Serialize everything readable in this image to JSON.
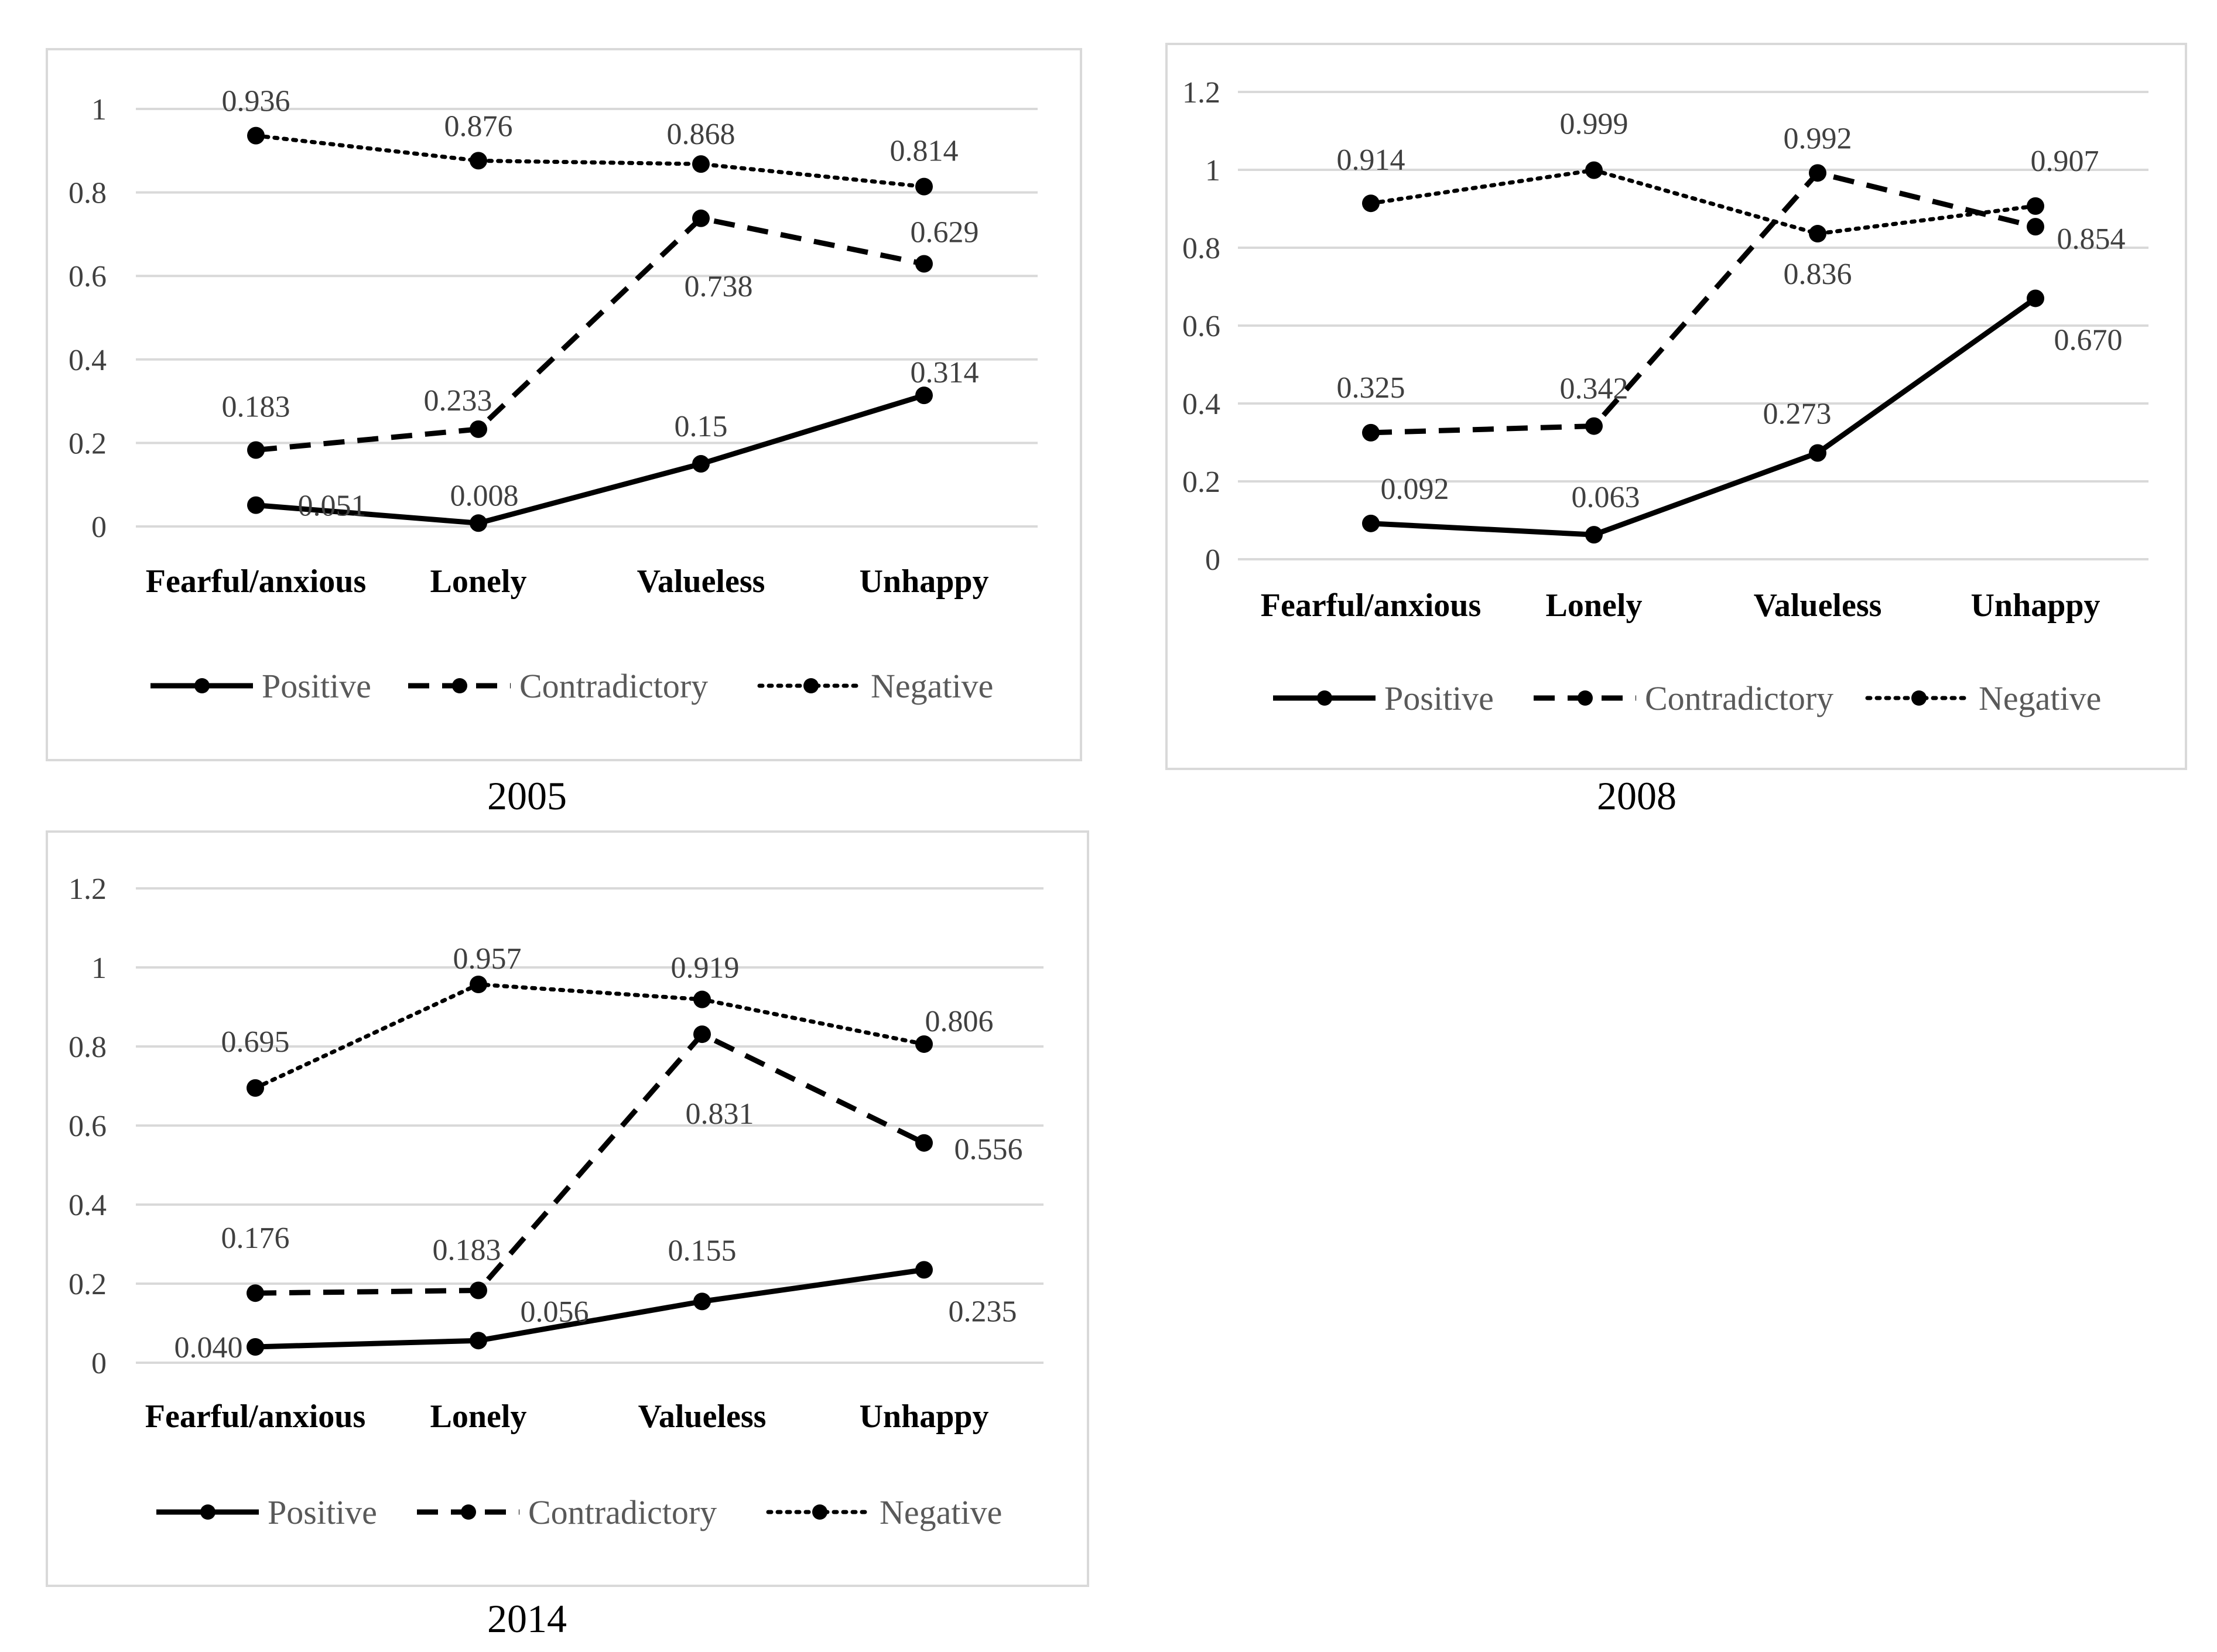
{
  "chart_data": [
    {
      "type": "line",
      "caption": "2005",
      "categories": [
        "Fearful/anxious",
        "Lonely",
        "Valueless",
        "Unhappy"
      ],
      "ylim": [
        0,
        1
      ],
      "yticks": [
        "0",
        "0.2",
        "0.4",
        "0.6",
        "0.8",
        "1"
      ],
      "grid": true,
      "legend_position": "bottom",
      "series": [
        {
          "name": "Positive",
          "style": "solid",
          "values": [
            0.051,
            0.008,
            0.15,
            0.314
          ],
          "labels": [
            "0.051",
            "0.008",
            "0.15",
            "0.314"
          ]
        },
        {
          "name": "Contradictory",
          "style": "dashed",
          "values": [
            0.183,
            0.233,
            0.738,
            0.629
          ],
          "labels": [
            "0.183",
            "0.233",
            "0.738",
            "0.629"
          ]
        },
        {
          "name": "Negative",
          "style": "dotted",
          "values": [
            0.936,
            0.876,
            0.868,
            0.814
          ],
          "labels": [
            "0.936",
            "0.876",
            "0.868",
            "0.814"
          ]
        }
      ]
    },
    {
      "type": "line",
      "caption": "2008",
      "categories": [
        "Fearful/anxious",
        "Lonely",
        "Valueless",
        "Unhappy"
      ],
      "ylim": [
        0,
        1.2
      ],
      "yticks": [
        "0",
        "0.2",
        "0.4",
        "0.6",
        "0.8",
        "1",
        "1.2"
      ],
      "grid": true,
      "legend_position": "bottom",
      "series": [
        {
          "name": "Positive",
          "style": "solid",
          "values": [
            0.092,
            0.063,
            0.273,
            0.67
          ],
          "labels": [
            "0.092",
            "0.063",
            "0.273",
            "0.670"
          ]
        },
        {
          "name": "Contradictory",
          "style": "dashed",
          "values": [
            0.325,
            0.342,
            0.992,
            0.854
          ],
          "labels": [
            "0.325",
            "0.342",
            "0.992",
            "0.854"
          ]
        },
        {
          "name": "Negative",
          "style": "dotted",
          "values": [
            0.914,
            0.999,
            0.836,
            0.907
          ],
          "labels": [
            "0.914",
            "0.999",
            "0.836",
            "0.907"
          ]
        }
      ]
    },
    {
      "type": "line",
      "caption": "2014",
      "categories": [
        "Fearful/anxious",
        "Lonely",
        "Valueless",
        "Unhappy"
      ],
      "ylim": [
        0,
        1.2
      ],
      "yticks": [
        "0",
        "0.2",
        "0.4",
        "0.6",
        "0.8",
        "1",
        "1.2"
      ],
      "grid": true,
      "legend_position": "bottom",
      "series": [
        {
          "name": "Positive",
          "style": "solid",
          "values": [
            0.04,
            0.056,
            0.155,
            0.235
          ],
          "labels": [
            "0.040",
            "0.056",
            "0.155",
            "0.235"
          ]
        },
        {
          "name": "Contradictory",
          "style": "dashed",
          "values": [
            0.176,
            0.183,
            0.831,
            0.556
          ],
          "labels": [
            "0.176",
            "0.183",
            "0.831",
            "0.556"
          ]
        },
        {
          "name": "Negative",
          "style": "dotted",
          "values": [
            0.695,
            0.957,
            0.919,
            0.806
          ],
          "labels": [
            "0.695",
            "0.957",
            "0.919",
            "0.806"
          ]
        }
      ]
    }
  ]
}
